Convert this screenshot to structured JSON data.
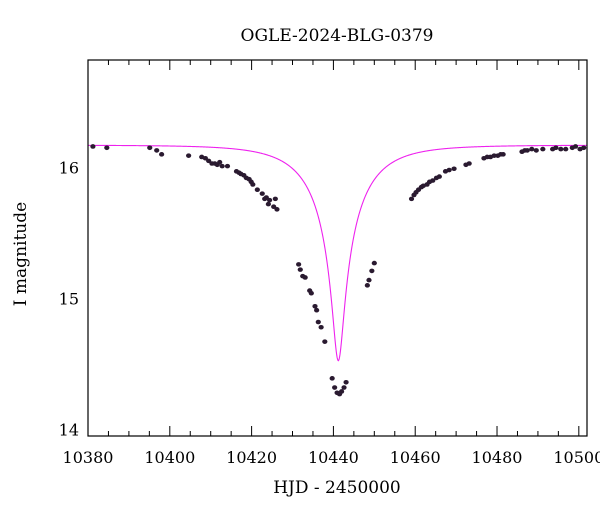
{
  "chart_data": {
    "type": "scatter",
    "title": "OGLE-2024-BLG-0379",
    "xlabel": "HJD - 2450000",
    "ylabel": "I magnitude",
    "xlim": [
      10380,
      10502
    ],
    "ylim": [
      16.82,
      13.95
    ],
    "y_inverted": true,
    "x_major_ticks": [
      10380,
      10400,
      10420,
      10440,
      10460,
      10480,
      10500
    ],
    "y_major_ticks": [
      14,
      15,
      16
    ],
    "x_tick_labels": [
      "10380",
      "10400",
      "10420",
      "10440",
      "10460",
      "10480",
      "10500"
    ],
    "y_tick_labels": [
      "14",
      "15",
      "16"
    ],
    "grid": false,
    "point_color": "#2a1a30",
    "model_color": "#ee22ee",
    "model": {
      "name": "",
      "type": "point-lens microlensing fit",
      "t0": 10441.2,
      "u0": 0.09,
      "tE": 13.8,
      "baseline": 16.17,
      "blend_fraction": 0.35
    },
    "series": [
      {
        "name": "",
        "x": [
          10381.2,
          10384.6,
          10395.1,
          10396.8,
          10398.0,
          10404.6,
          10407.8,
          10408.7,
          10409.5,
          10410.3,
          10411.0,
          10411.6,
          10412.2,
          10412.8,
          10414.1,
          10416.3,
          10416.9,
          10417.4,
          10418.1,
          10418.7,
          10419.4,
          10419.9,
          10420.3,
          10421.4,
          10422.6,
          10423.2,
          10423.6,
          10424.1,
          10424.4,
          10425.4,
          10425.8,
          10426.2,
          10431.5,
          10431.9,
          10432.5,
          10433.1,
          10434.2,
          10434.6,
          10435.5,
          10435.9,
          10436.3,
          10437.0,
          10437.9,
          10439.7,
          10440.3,
          10440.9,
          10441.5,
          10442.0,
          10442.6,
          10443.1,
          10448.3,
          10448.7,
          10449.4,
          10450.0,
          10459.1,
          10459.7,
          10460.2,
          10460.8,
          10461.5,
          10462.0,
          10462.9,
          10463.5,
          10464.3,
          10465.2,
          10465.9,
          10467.4,
          10468.3,
          10469.5,
          10472.4,
          10473.2,
          10476.8,
          10477.6,
          10478.4,
          10479.3,
          10480.2,
          10480.9,
          10481.5,
          10486.1,
          10486.8,
          10487.4,
          10488.5,
          10489.6,
          10491.2,
          10493.6,
          10494.4,
          10495.6,
          10496.8,
          10498.4,
          10499.2,
          10500.3,
          10501.2
        ],
        "y": [
          16.16,
          16.15,
          16.15,
          16.13,
          16.1,
          16.09,
          16.08,
          16.07,
          16.05,
          16.03,
          16.03,
          16.02,
          16.04,
          16.01,
          16.01,
          15.97,
          15.96,
          15.95,
          15.94,
          15.92,
          15.91,
          15.89,
          15.87,
          15.83,
          15.8,
          15.76,
          15.77,
          15.72,
          15.75,
          15.7,
          15.76,
          15.68,
          15.26,
          15.22,
          15.17,
          15.16,
          15.06,
          15.04,
          14.94,
          14.91,
          14.82,
          14.78,
          14.67,
          14.39,
          14.32,
          14.28,
          14.27,
          14.29,
          14.32,
          14.36,
          15.1,
          15.14,
          15.21,
          15.27,
          15.76,
          15.79,
          15.81,
          15.83,
          15.85,
          15.86,
          15.87,
          15.89,
          15.9,
          15.92,
          15.93,
          15.97,
          15.98,
          15.99,
          16.02,
          16.03,
          16.07,
          16.08,
          16.08,
          16.09,
          16.09,
          16.1,
          16.1,
          16.12,
          16.13,
          16.13,
          16.14,
          16.13,
          16.14,
          16.14,
          16.15,
          16.14,
          16.14,
          16.15,
          16.16,
          16.14,
          16.15
        ]
      }
    ]
  }
}
